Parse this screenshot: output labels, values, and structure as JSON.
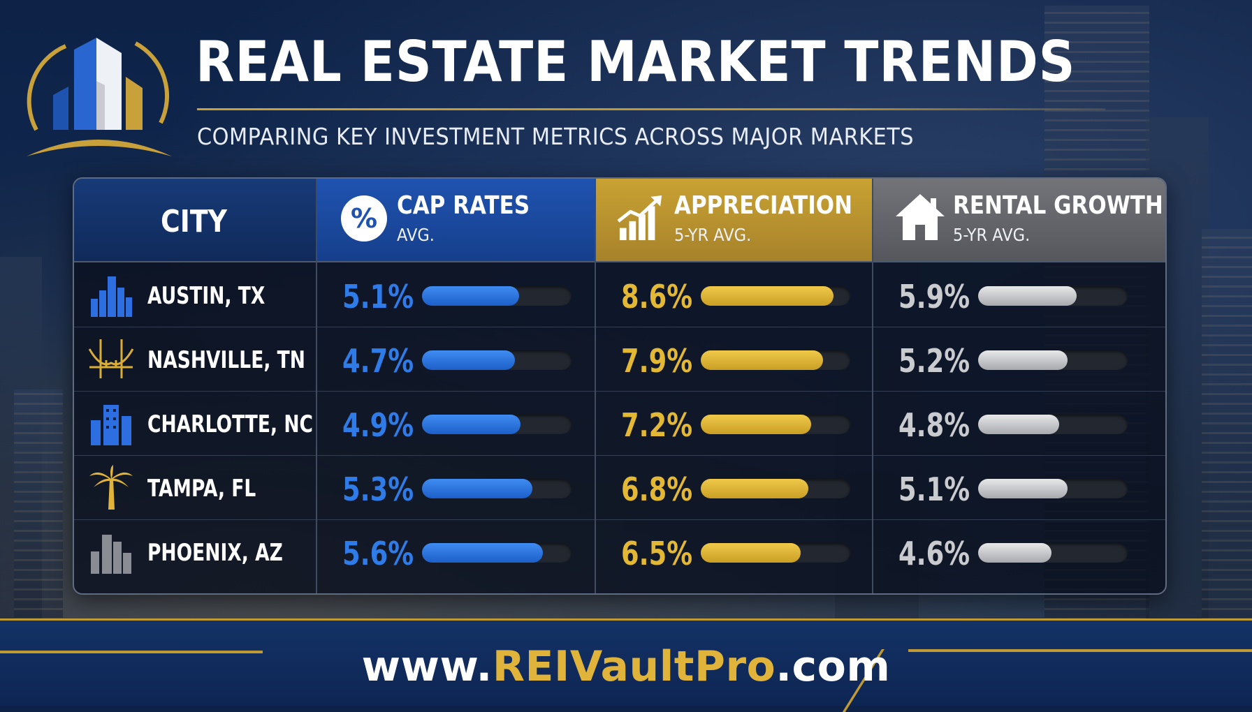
{
  "header": {
    "title": "REAL ESTATE MARKET TRENDS",
    "subtitle": "COMPARING KEY INVESTMENT METRICS ACROSS MAJOR MARKETS",
    "logo_icon": "city-buildings-logo-icon"
  },
  "table": {
    "columns": {
      "city": {
        "title": "CITY"
      },
      "cap": {
        "title": "CAP RATES",
        "sub": "AVG.",
        "icon": "percent-icon",
        "color": "#2f7be8"
      },
      "app": {
        "title": "APPRECIATION",
        "sub": "5-YR AVG.",
        "icon": "growth-chart-icon",
        "color": "#e3b834"
      },
      "rent": {
        "title": "RENTAL GROWTH",
        "sub": "5-YR AVG.",
        "icon": "house-icon",
        "color": "#c9cbcf"
      }
    },
    "rows": [
      {
        "city": "AUSTIN, TX",
        "icon": "skyline-icon",
        "cap": "5.1%",
        "app": "8.6%",
        "rent": "5.9%",
        "cap_fill": 0.65,
        "app_fill": 0.89,
        "rent_fill": 0.66
      },
      {
        "city": "NASHVILLE, TN",
        "icon": "bridge-icon",
        "cap": "4.7%",
        "app": "7.9%",
        "rent": "5.2%",
        "cap_fill": 0.62,
        "app_fill": 0.82,
        "rent_fill": 0.6
      },
      {
        "city": "CHARLOTTE, NC",
        "icon": "office-tower-icon",
        "cap": "4.9%",
        "app": "7.2%",
        "rent": "4.8%",
        "cap_fill": 0.66,
        "app_fill": 0.74,
        "rent_fill": 0.54
      },
      {
        "city": "TAMPA, FL",
        "icon": "palm-tree-icon",
        "cap": "5.3%",
        "app": "6.8%",
        "rent": "5.1%",
        "cap_fill": 0.74,
        "app_fill": 0.72,
        "rent_fill": 0.6
      },
      {
        "city": "PHOENIX, AZ",
        "icon": "desert-skyline-icon",
        "cap": "5.6%",
        "app": "6.5%",
        "rent": "4.6%",
        "cap_fill": 0.81,
        "app_fill": 0.67,
        "rent_fill": 0.49
      }
    ]
  },
  "footer": {
    "url_prefix": "www.",
    "url_brand": "REIVaultPro",
    "url_suffix": ".com"
  }
}
